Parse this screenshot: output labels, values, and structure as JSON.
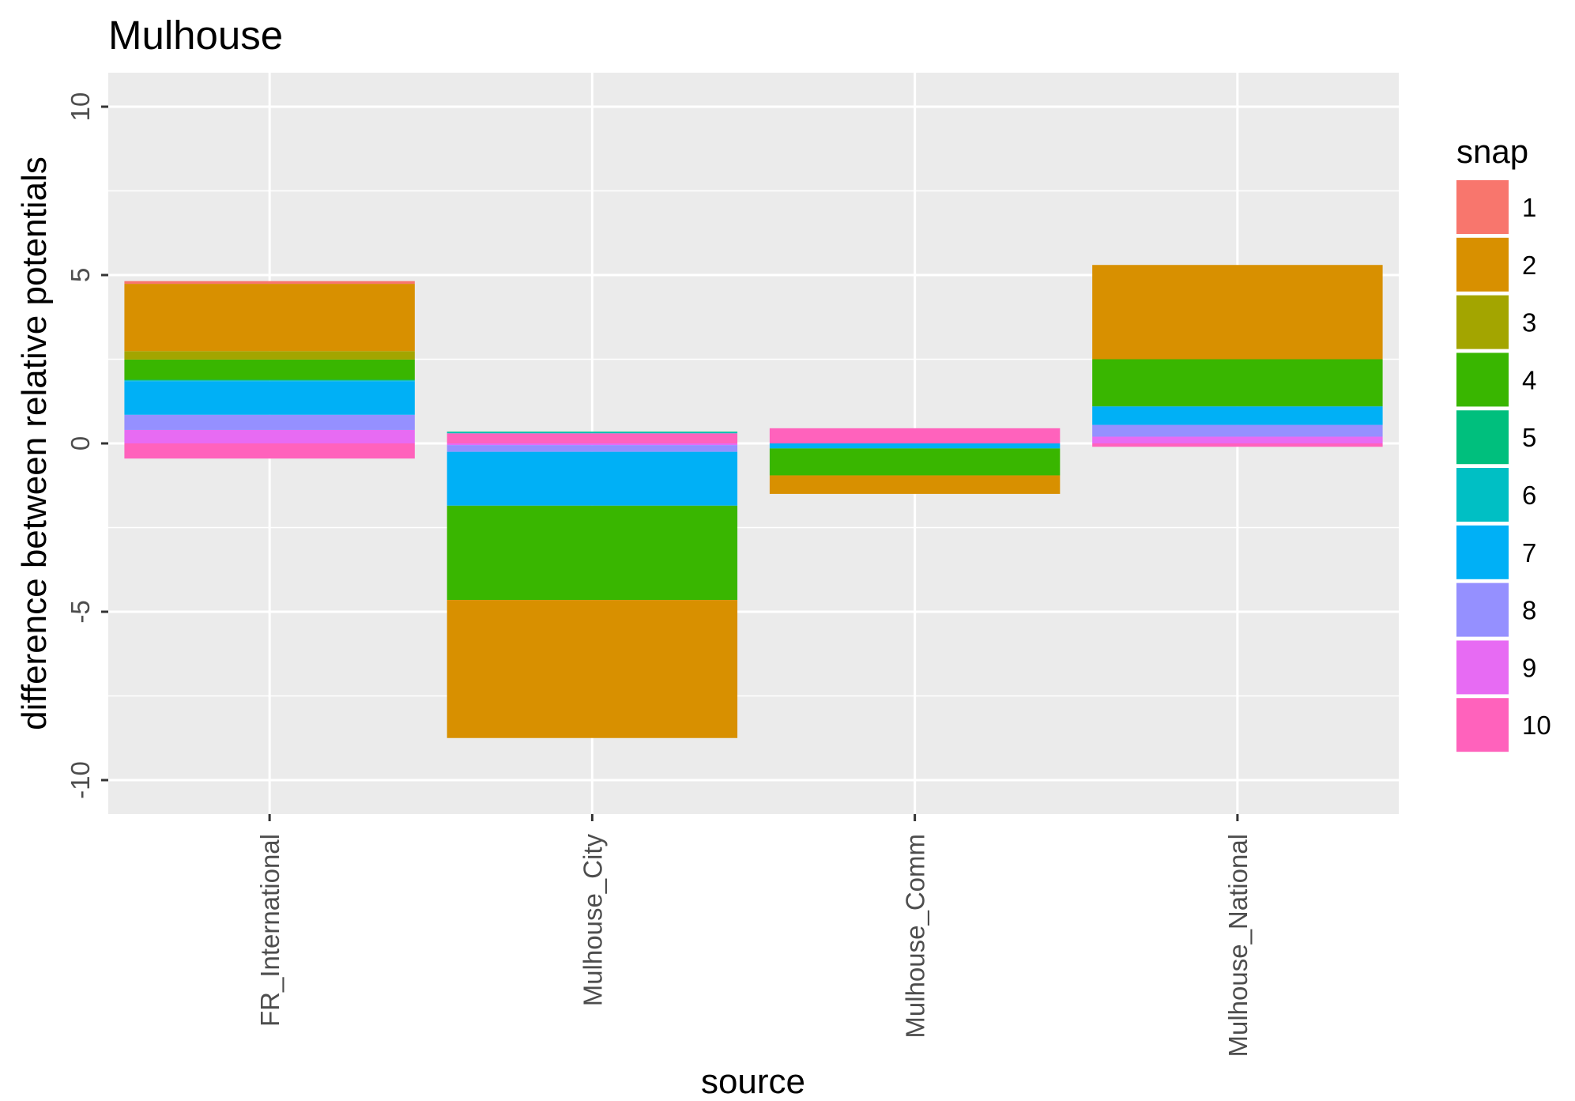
{
  "chart_data": {
    "type": "bar",
    "stacked": true,
    "title": "Mulhouse",
    "xlabel": "source",
    "ylabel": "difference between relative potentials",
    "categories": [
      "FR_International",
      "Mulhouse_City",
      "Mulhouse_Comm",
      "Mulhouse_National"
    ],
    "ylim": [
      -11,
      11
    ],
    "yticks": [
      -10,
      -5,
      0,
      5,
      10
    ],
    "tick_labels_y": [
      "-10",
      "-5",
      "0",
      "5",
      "10"
    ],
    "grid": true,
    "legend": {
      "title": "snap",
      "position": "right"
    },
    "series": [
      {
        "name": "1",
        "color": "#F8766D",
        "values": [
          0.08,
          0,
          0,
          0
        ]
      },
      {
        "name": "2",
        "color": "#D89000",
        "values": [
          2.0,
          -4.1,
          -0.55,
          2.8
        ]
      },
      {
        "name": "3",
        "color": "#A3A500",
        "values": [
          0.25,
          0,
          0,
          0
        ]
      },
      {
        "name": "4",
        "color": "#39B600",
        "values": [
          0.6,
          -2.8,
          -0.8,
          1.4
        ]
      },
      {
        "name": "5",
        "color": "#00BF7D",
        "values": [
          0.02,
          0.02,
          0,
          0
        ]
      },
      {
        "name": "6",
        "color": "#00BFC4",
        "values": [
          0.02,
          0.03,
          0,
          0
        ]
      },
      {
        "name": "7",
        "color": "#00B0F6",
        "values": [
          1.0,
          -1.6,
          -0.15,
          0.55
        ]
      },
      {
        "name": "8",
        "color": "#9590FF",
        "values": [
          0.45,
          -0.2,
          0,
          0.35
        ]
      },
      {
        "name": "9",
        "color": "#E76BF3",
        "values": [
          0.4,
          -0.05,
          0,
          0.2
        ]
      },
      {
        "name": "10",
        "color": "#FF62BC",
        "values": [
          -0.45,
          0.3,
          0.45,
          -0.1
        ]
      }
    ]
  }
}
